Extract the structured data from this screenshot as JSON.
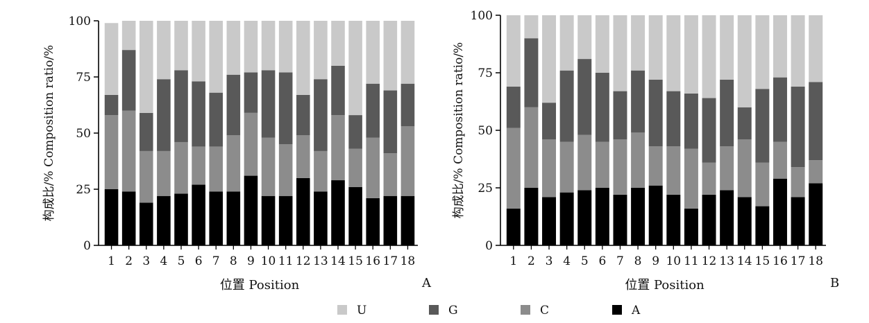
{
  "colors": {
    "U": "#c9c9c9",
    "G": "#595959",
    "C": "#8c8c8c",
    "A": "#000000",
    "axis": "#000000"
  },
  "legend": {
    "order": [
      "U",
      "G",
      "C",
      "A"
    ],
    "placement": "bottom-center"
  },
  "chart_data": [
    {
      "panel_label": "A",
      "type": "bar",
      "stacked": true,
      "xlabel": "位置  Position",
      "ylabel": "构成比/%  Composition  ratio/%",
      "ylim": [
        0,
        100
      ],
      "yticks": [
        "0",
        "25",
        "50",
        "75",
        "100"
      ],
      "categories": [
        "1",
        "2",
        "3",
        "4",
        "5",
        "6",
        "7",
        "8",
        "9",
        "10",
        "11",
        "12",
        "13",
        "14",
        "15",
        "16",
        "17",
        "18"
      ],
      "series": [
        {
          "name": "A",
          "values": [
            25,
            24,
            19,
            22,
            23,
            27,
            24,
            24,
            31,
            22,
            22,
            30,
            24,
            29,
            26,
            21,
            22,
            22
          ]
        },
        {
          "name": "C",
          "values": [
            33,
            36,
            23,
            20,
            23,
            17,
            20,
            25,
            28,
            26,
            23,
            19,
            18,
            29,
            17,
            27,
            19,
            31
          ]
        },
        {
          "name": "G",
          "values": [
            9,
            27,
            17,
            32,
            32,
            29,
            24,
            27,
            18,
            30,
            32,
            18,
            32,
            22,
            15,
            24,
            28,
            19
          ]
        },
        {
          "name": "U",
          "values": [
            32,
            13,
            41,
            26,
            22,
            27,
            32,
            24,
            23,
            22,
            23,
            33,
            26,
            20,
            42,
            28,
            31,
            28
          ]
        }
      ]
    },
    {
      "panel_label": "B",
      "type": "bar",
      "stacked": true,
      "xlabel": "位置  Position",
      "ylabel": "构成比/%  Composition  ratio/%",
      "ylim": [
        0,
        100
      ],
      "yticks": [
        "0",
        "25",
        "50",
        "75",
        "100"
      ],
      "categories": [
        "1",
        "2",
        "3",
        "4",
        "5",
        "6",
        "7",
        "8",
        "9",
        "10",
        "11",
        "12",
        "13",
        "14",
        "15",
        "16",
        "17",
        "18"
      ],
      "series": [
        {
          "name": "A",
          "values": [
            16,
            25,
            21,
            23,
            24,
            25,
            22,
            25,
            26,
            22,
            16,
            22,
            24,
            21,
            17,
            29,
            21,
            27
          ]
        },
        {
          "name": "C",
          "values": [
            35,
            35,
            25,
            22,
            24,
            20,
            24,
            24,
            17,
            21,
            26,
            14,
            19,
            25,
            19,
            16,
            13,
            10
          ]
        },
        {
          "name": "G",
          "values": [
            18,
            30,
            16,
            31,
            33,
            30,
            21,
            27,
            29,
            24,
            24,
            28,
            29,
            14,
            32,
            28,
            35,
            34
          ]
        },
        {
          "name": "U",
          "values": [
            31,
            10,
            38,
            24,
            19,
            25,
            33,
            24,
            28,
            33,
            34,
            36,
            28,
            40,
            32,
            27,
            31,
            29
          ]
        }
      ]
    }
  ]
}
